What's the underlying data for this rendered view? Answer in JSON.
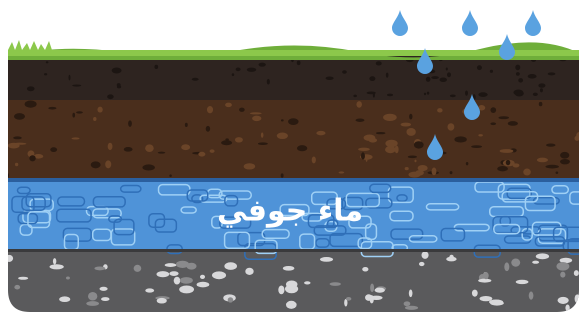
{
  "label": "ماء جوفي"
}
